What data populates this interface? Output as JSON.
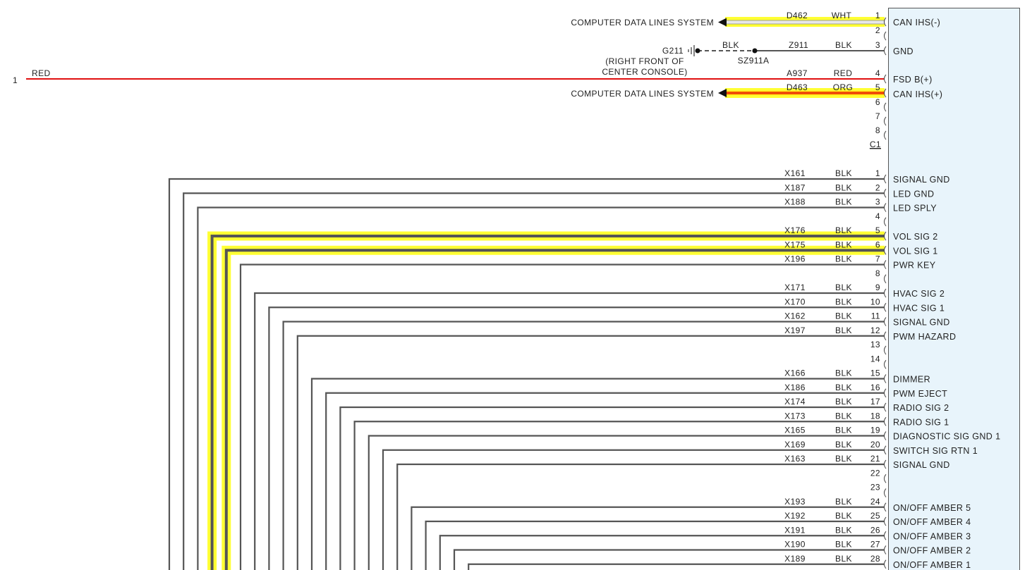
{
  "module_connector_c1": {
    "connector_id": "C1",
    "pins": [
      {
        "pin": "1",
        "circuit": "D462",
        "color": "WHT",
        "function": "CAN IHS(-)"
      },
      {
        "pin": "2",
        "circuit": "",
        "color": "",
        "function": ""
      },
      {
        "pin": "3",
        "circuit": "Z911",
        "color": "BLK",
        "function": "GND"
      },
      {
        "pin": "4",
        "circuit": "A937",
        "color": "RED",
        "function": "FSD B(+)"
      },
      {
        "pin": "5",
        "circuit": "D463",
        "color": "ORG",
        "function": "CAN IHS(+)"
      },
      {
        "pin": "6",
        "circuit": "",
        "color": "",
        "function": ""
      },
      {
        "pin": "7",
        "circuit": "",
        "color": "",
        "function": ""
      },
      {
        "pin": "8",
        "circuit": "",
        "color": "",
        "function": ""
      }
    ],
    "references": [
      {
        "pin": "1",
        "text": "COMPUTER DATA LINES SYSTEM"
      },
      {
        "pin": "5",
        "text": "COMPUTER DATA LINES SYSTEM"
      }
    ],
    "ground": {
      "name": "G211",
      "location_line1": "(RIGHT FRONT OF",
      "location_line2": "CENTER CONSOLE)",
      "wire_color": "BLK",
      "splice": "SZ911A"
    },
    "left_feed": {
      "ref": "1",
      "color": "RED"
    }
  },
  "module_connector_c2": {
    "pins": [
      {
        "pin": "1",
        "circuit": "X161",
        "color": "BLK",
        "function": "SIGNAL GND"
      },
      {
        "pin": "2",
        "circuit": "X187",
        "color": "BLK",
        "function": "LED GND"
      },
      {
        "pin": "3",
        "circuit": "X188",
        "color": "BLK",
        "function": "LED SPLY"
      },
      {
        "pin": "4",
        "circuit": "",
        "color": "",
        "function": ""
      },
      {
        "pin": "5",
        "circuit": "X176",
        "color": "BLK",
        "function": "VOL SIG 2"
      },
      {
        "pin": "6",
        "circuit": "X175",
        "color": "BLK",
        "function": "VOL SIG 1"
      },
      {
        "pin": "7",
        "circuit": "X196",
        "color": "BLK",
        "function": "PWR KEY"
      },
      {
        "pin": "8",
        "circuit": "",
        "color": "",
        "function": ""
      },
      {
        "pin": "9",
        "circuit": "X171",
        "color": "BLK",
        "function": "HVAC SIG 2"
      },
      {
        "pin": "10",
        "circuit": "X170",
        "color": "BLK",
        "function": "HVAC SIG 1"
      },
      {
        "pin": "11",
        "circuit": "X162",
        "color": "BLK",
        "function": "SIGNAL GND"
      },
      {
        "pin": "12",
        "circuit": "X197",
        "color": "BLK",
        "function": "PWM HAZARD"
      },
      {
        "pin": "13",
        "circuit": "",
        "color": "",
        "function": ""
      },
      {
        "pin": "14",
        "circuit": "",
        "color": "",
        "function": ""
      },
      {
        "pin": "15",
        "circuit": "X166",
        "color": "BLK",
        "function": "DIMMER"
      },
      {
        "pin": "16",
        "circuit": "X186",
        "color": "BLK",
        "function": "PWM EJECT"
      },
      {
        "pin": "17",
        "circuit": "X174",
        "color": "BLK",
        "function": "RADIO SIG 2"
      },
      {
        "pin": "18",
        "circuit": "X173",
        "color": "BLK",
        "function": "RADIO SIG 1"
      },
      {
        "pin": "19",
        "circuit": "X165",
        "color": "BLK",
        "function": "DIAGNOSTIC SIG GND 1"
      },
      {
        "pin": "20",
        "circuit": "X169",
        "color": "BLK",
        "function": "SWITCH SIG RTN 1"
      },
      {
        "pin": "21",
        "circuit": "X163",
        "color": "BLK",
        "function": "SIGNAL GND"
      },
      {
        "pin": "22",
        "circuit": "",
        "color": "",
        "function": ""
      },
      {
        "pin": "23",
        "circuit": "",
        "color": "",
        "function": ""
      },
      {
        "pin": "24",
        "circuit": "X193",
        "color": "BLK",
        "function": "ON/OFF AMBER 5"
      },
      {
        "pin": "25",
        "circuit": "X192",
        "color": "BLK",
        "function": "ON/OFF AMBER 4"
      },
      {
        "pin": "26",
        "circuit": "X191",
        "color": "BLK",
        "function": "ON/OFF AMBER 3"
      },
      {
        "pin": "27",
        "circuit": "X190",
        "color": "BLK",
        "function": "ON/OFF AMBER 2"
      },
      {
        "pin": "28",
        "circuit": "X189",
        "color": "BLK",
        "function": "ON/OFF AMBER 1"
      }
    ],
    "highlighted_pins": [
      "5",
      "6"
    ]
  },
  "colors": {
    "module_fill": "#e8f4fb",
    "module_border": "#555555",
    "wire_blk": "#555555",
    "wire_red": "#e01010",
    "highlight": "#ffff33",
    "can_orange": "#ff8c00"
  }
}
